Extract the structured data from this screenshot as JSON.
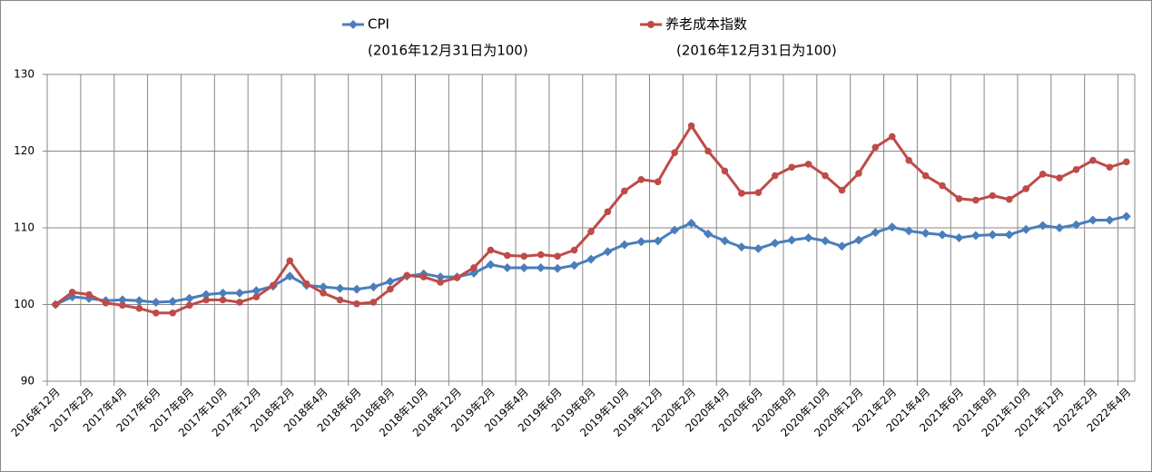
{
  "chart_data": {
    "type": "line",
    "categories": [
      "2016年12月",
      null,
      "2017年2月",
      null,
      "2017年4月",
      null,
      "2017年6月",
      null,
      "2017年8月",
      null,
      "2017年10月",
      null,
      "2017年12月",
      null,
      "2018年2月",
      null,
      "2018年4月",
      null,
      "2018年6月",
      null,
      "2018年8月",
      null,
      "2018年10月",
      null,
      "2018年12月",
      null,
      "2019年2月",
      null,
      "2019年4月",
      null,
      "2019年6月",
      null,
      "2019年8月",
      null,
      "2019年10月",
      null,
      "2019年12月",
      null,
      "2020年2月",
      null,
      "2020年4月",
      null,
      "2020年6月",
      null,
      "2020年8月",
      null,
      "2020年10月",
      null,
      "2020年12月",
      null,
      "2021年2月",
      null,
      "2021年4月",
      null,
      "2021年6月",
      null,
      "2021年8月",
      null,
      "2021年10月",
      null,
      "2021年12月",
      null,
      "2022年2月",
      null,
      "2022年4月"
    ],
    "series": [
      {
        "name": "CPI",
        "note": "(2016年12月31日为100)",
        "color": "#4a7ebb",
        "marker": "diamond",
        "values": [
          100,
          101.0,
          100.8,
          100.5,
          100.6,
          100.5,
          100.3,
          100.4,
          100.8,
          101.3,
          101.5,
          101.5,
          101.8,
          102.4,
          103.7,
          102.5,
          102.3,
          102.1,
          102.0,
          102.3,
          103.0,
          103.7,
          104.0,
          103.6,
          103.6,
          104.1,
          105.2,
          104.8,
          104.8,
          104.8,
          104.7,
          105.1,
          105.9,
          106.9,
          107.8,
          108.2,
          108.3,
          109.7,
          110.6,
          109.2,
          108.3,
          107.5,
          107.3,
          108.0,
          108.4,
          108.7,
          108.3,
          107.6,
          108.4,
          109.4,
          110.1,
          109.6,
          109.3,
          109.1,
          108.7,
          109.0,
          109.1,
          109.1,
          109.8,
          110.3,
          110.0,
          110.4,
          111.0,
          111.0,
          111.5
        ]
      },
      {
        "name": "养老成本指数",
        "note": "(2016年12月31日为100)",
        "color": "#be4b48",
        "marker": "circle",
        "values": [
          100,
          101.6,
          101.3,
          100.2,
          99.9,
          99.5,
          98.9,
          98.9,
          99.9,
          100.6,
          100.6,
          100.3,
          101.0,
          102.5,
          105.7,
          102.7,
          101.5,
          100.6,
          100.1,
          100.3,
          102.0,
          103.8,
          103.6,
          102.9,
          103.5,
          104.8,
          107.1,
          106.4,
          106.3,
          106.5,
          106.3,
          107.1,
          109.5,
          112.1,
          114.8,
          116.3,
          116.0,
          119.8,
          123.3,
          120.0,
          117.4,
          114.5,
          114.6,
          116.8,
          117.9,
          118.3,
          116.8,
          114.9,
          117.1,
          120.5,
          121.9,
          118.8,
          116.8,
          115.5,
          113.8,
          113.6,
          114.2,
          113.7,
          115.1,
          117.0,
          116.5,
          117.6,
          118.8,
          117.9,
          118.6
        ]
      }
    ],
    "ylim": [
      90,
      130
    ],
    "yticks": [
      90,
      100,
      110,
      120,
      130
    ],
    "grid": true
  }
}
